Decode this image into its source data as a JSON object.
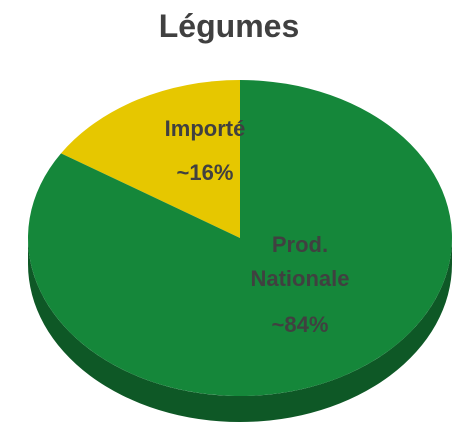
{
  "chart_data": {
    "type": "pie",
    "title": "Légumes",
    "categories": [
      "Importé",
      "Prod. Nationale"
    ],
    "values": [
      16,
      84
    ],
    "value_labels": [
      "~16%",
      "~84%"
    ],
    "colors": [
      "#e6c700",
      "#15873a"
    ]
  }
}
